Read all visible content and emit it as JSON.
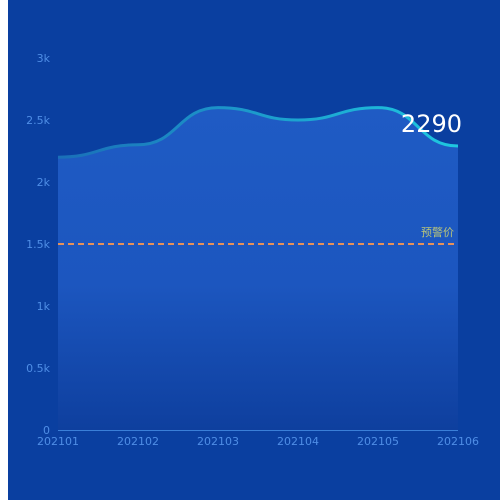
{
  "chart_data": {
    "type": "area",
    "x": [
      "202101",
      "202102",
      "202103",
      "202104",
      "202105",
      "202106"
    ],
    "values": [
      2200,
      2300,
      2600,
      2500,
      2600,
      2290
    ],
    "ylim": [
      0,
      3000
    ],
    "yticks": [
      0,
      500,
      1000,
      1500,
      2000,
      2500,
      3000
    ],
    "ytick_labels": [
      "0",
      "0.5k",
      "1k",
      "1.5k",
      "2k",
      "2.5k",
      "3k"
    ],
    "last_value_label": "2290",
    "threshold": {
      "label": "预警价",
      "value": 1500
    },
    "grid": false,
    "colors": {
      "background": "#0a3fa0",
      "line_start": "#1a6fb8",
      "line_end": "#1ec8e0",
      "area_top": "#1f5bc4",
      "area_bottom": "#0e3f9e",
      "threshold": "#e6915a",
      "threshold_label": "#b9c47a",
      "tick_text": "#4f8ee6",
      "axis": "#3a7fd8",
      "value_label": "#ffffff"
    }
  }
}
